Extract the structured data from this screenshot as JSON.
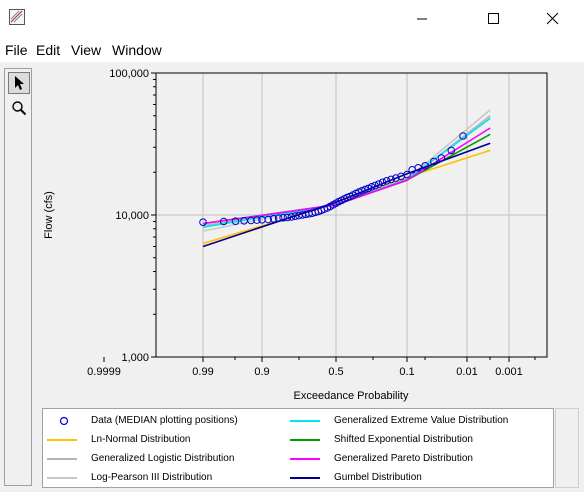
{
  "window": {
    "app_icon": "probability-plot-icon",
    "controls": [
      "minimize-icon",
      "maximize-icon",
      "close-icon"
    ]
  },
  "menu": {
    "items": [
      "File",
      "Edit",
      "View",
      "Window"
    ]
  },
  "toolbar": {
    "tools": [
      "select-arrow-icon",
      "zoom-icon"
    ]
  },
  "chart_data": {
    "type": "scatter",
    "title": "",
    "xlabel": "Exceedance Probability",
    "ylabel": "Flow (cfs)",
    "x_scale": "probability (normal)",
    "y_scale": "log",
    "x_ticks": [
      "0.9999",
      "0.99",
      "0.9",
      "0.5",
      "0.1",
      "0.01",
      "0.001"
    ],
    "y_ticks": [
      "1,000",
      "10,000",
      "100,000"
    ],
    "ylim": [
      1000,
      100000
    ],
    "grid": true,
    "legend_position": "bottom",
    "series": [
      {
        "name": "Data (MEDIAN plotting positions)",
        "kind": "points",
        "color": "#0000cc",
        "x": [
          0.99,
          0.975,
          0.96,
          0.945,
          0.93,
          0.915,
          0.9,
          0.88,
          0.86,
          0.84,
          0.82,
          0.8,
          0.78,
          0.76,
          0.74,
          0.72,
          0.7,
          0.68,
          0.66,
          0.64,
          0.62,
          0.6,
          0.58,
          0.56,
          0.54,
          0.52,
          0.5,
          0.48,
          0.46,
          0.44,
          0.42,
          0.4,
          0.38,
          0.36,
          0.34,
          0.32,
          0.3,
          0.28,
          0.26,
          0.24,
          0.22,
          0.2,
          0.18,
          0.16,
          0.14,
          0.12,
          0.1,
          0.085,
          0.07,
          0.055,
          0.04,
          0.03,
          0.02,
          0.012
        ],
        "y": [
          8900,
          9000,
          9050,
          9100,
          9150,
          9200,
          9250,
          9300,
          9400,
          9500,
          9550,
          9600,
          9700,
          9800,
          9900,
          10000,
          10100,
          10200,
          10300,
          10450,
          10600,
          10800,
          11000,
          11200,
          11500,
          11800,
          12100,
          12400,
          12700,
          13000,
          13300,
          13500,
          13800,
          14200,
          14500,
          14800,
          15100,
          15400,
          15800,
          16100,
          16500,
          17000,
          17400,
          17800,
          18200,
          18700,
          19300,
          20800,
          21500,
          22200,
          23800,
          25200,
          28500,
          36000
        ]
      },
      {
        "name": "Ln-Normal Distribution",
        "kind": "line",
        "color": "#ffc000",
        "x": [
          0.99,
          0.5,
          0.1,
          0.003
        ],
        "y": [
          6300,
          12000,
          18500,
          28500
        ]
      },
      {
        "name": "Generalized Logistic Distribution",
        "kind": "line",
        "color": "#b4b4b4",
        "x": [
          0.99,
          0.5,
          0.1,
          0.003
        ],
        "y": [
          8400,
          11800,
          17500,
          50000
        ]
      },
      {
        "name": "Log-Pearson III Distribution",
        "kind": "line",
        "color": "#c8c8c8",
        "x": [
          0.99,
          0.5,
          0.1,
          0.003
        ],
        "y": [
          7700,
          12000,
          18000,
          55000
        ]
      },
      {
        "name": "Generalized Extreme Value Distribution",
        "kind": "line",
        "color": "#00e5ee",
        "x": [
          0.99,
          0.5,
          0.1,
          0.003
        ],
        "y": [
          8200,
          11800,
          17800,
          48000
        ]
      },
      {
        "name": "Shifted Exponential Distribution",
        "kind": "line",
        "color": "#00a000",
        "x": [
          0.99,
          0.5,
          0.1,
          0.003
        ],
        "y": [
          8700,
          11800,
          17600,
          37000
        ]
      },
      {
        "name": "Generalized Pareto Distribution",
        "kind": "line",
        "color": "#ff00ff",
        "x": [
          0.99,
          0.5,
          0.1,
          0.003
        ],
        "y": [
          8700,
          11800,
          17600,
          41000
        ]
      },
      {
        "name": "Gumbel Distribution",
        "kind": "line",
        "color": "#00008b",
        "x": [
          0.99,
          0.5,
          0.1,
          0.003
        ],
        "y": [
          6000,
          12300,
          19500,
          32000
        ]
      }
    ]
  }
}
